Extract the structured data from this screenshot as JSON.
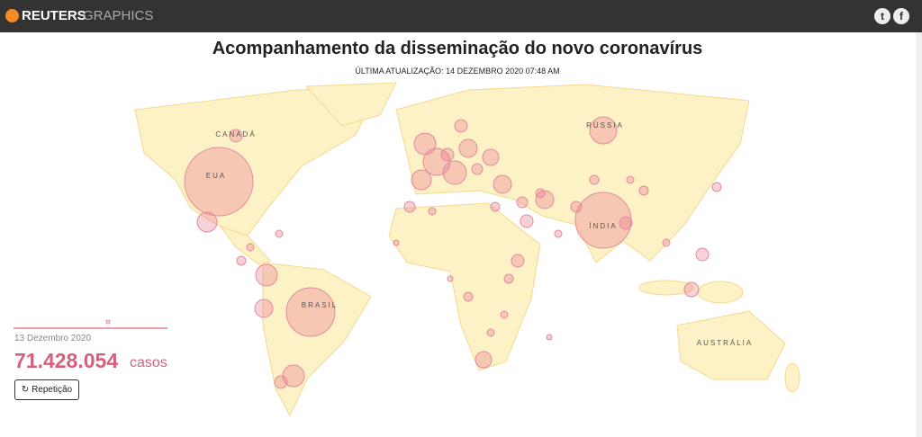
{
  "header": {
    "brand": "REUTERS",
    "section": "GRAPHICS"
  },
  "title": "Acompanhamento da disseminação do novo coronavírus",
  "subtitle": "ÚLTIMA ATUALIZAÇÃO: 14 DEZEMBRO 2020 07:48 AM",
  "map": {
    "labels": [
      "CANADÁ",
      "EUA",
      "BRASIL",
      "RÚSSIA",
      "ÍNDIA",
      "AUSTRÁLIA"
    ]
  },
  "counter": {
    "date": "13 Dezembro 2020",
    "count": "71.428.054",
    "unit": "casos",
    "button": "Repetição"
  }
}
